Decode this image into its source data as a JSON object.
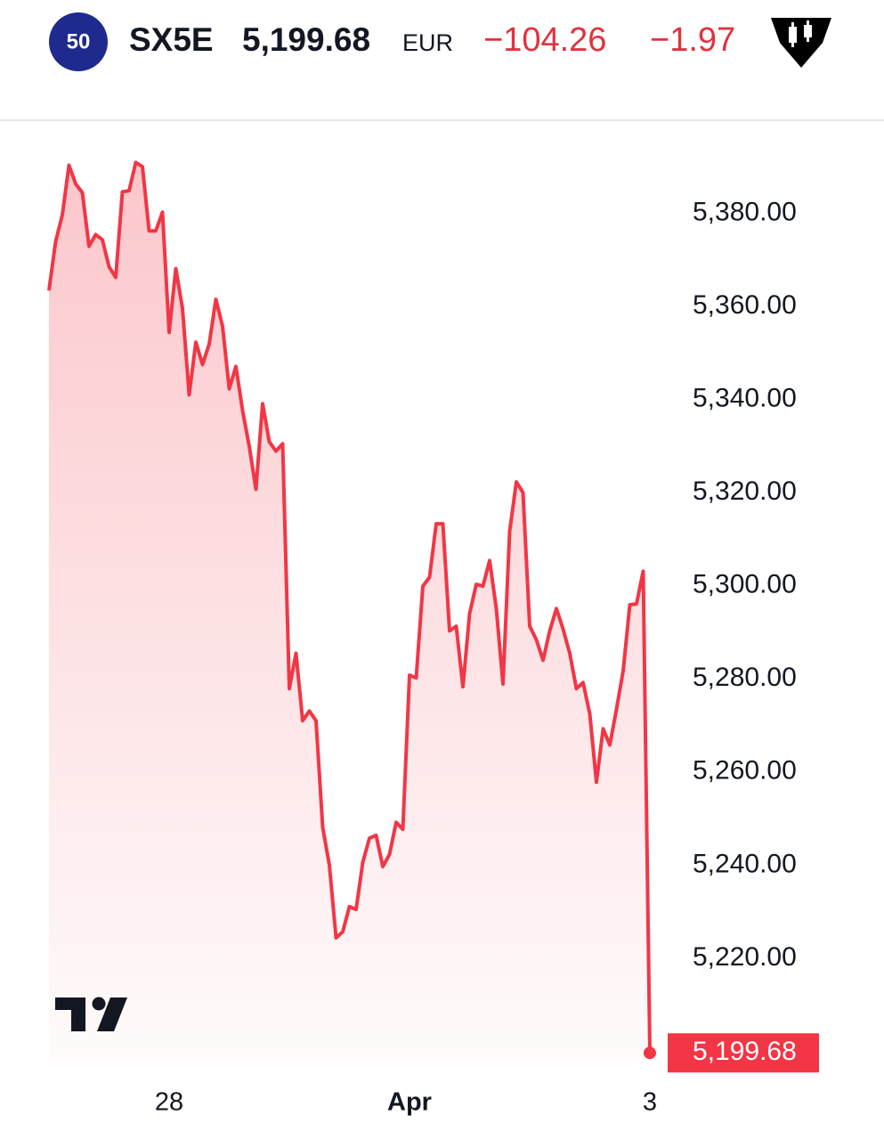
{
  "header": {
    "badge": "50",
    "symbol": "SX5E",
    "price": "5,199.68",
    "currency": "EUR",
    "change": "−104.26",
    "change_percent": "−1.97"
  },
  "chart_data": {
    "type": "area",
    "categories": [
      null,
      null,
      null,
      null,
      null,
      null,
      null,
      null,
      null,
      null,
      null,
      null,
      null,
      null,
      null,
      null,
      null,
      null,
      "28",
      null,
      null,
      null,
      null,
      null,
      null,
      null,
      null,
      null,
      null,
      null,
      null,
      null,
      null,
      null,
      null,
      null,
      null,
      null,
      null,
      null,
      null,
      null,
      null,
      null,
      null,
      null,
      null,
      null,
      null,
      null,
      null,
      null,
      null,
      null,
      "Apr",
      null,
      null,
      null,
      null,
      null,
      null,
      null,
      null,
      null,
      null,
      null,
      null,
      null,
      null,
      null,
      null,
      null,
      null,
      null,
      null,
      null,
      null,
      null,
      null,
      null,
      null,
      null,
      null,
      null,
      null,
      null,
      null,
      null,
      null,
      null,
      "3"
    ],
    "series": [
      {
        "name": "SX5E",
        "color": "#f23645",
        "values": [
          5363.4,
          5373.9,
          5379.6,
          5390.3,
          5386.3,
          5384.4,
          5372.9,
          5375.4,
          5374.3,
          5368.5,
          5366.2,
          5384.6,
          5384.8,
          5390.9,
          5390.0,
          5376.2,
          5376.2,
          5380.2,
          5354.4,
          5368.1,
          5359.5,
          5341.0,
          5352.3,
          5347.5,
          5351.9,
          5361.5,
          5355.7,
          5342.3,
          5347.1,
          5337.6,
          5329.9,
          5320.7,
          5339.1,
          5330.9,
          5328.9,
          5330.5,
          5277.9,
          5285.5,
          5271.0,
          5273.1,
          5271.0,
          5248.1,
          5240.0,
          5224.4,
          5225.7,
          5231.1,
          5230.5,
          5240.6,
          5245.8,
          5246.4,
          5239.7,
          5242.3,
          5249.2,
          5247.7,
          5280.8,
          5280.2,
          5299.9,
          5301.8,
          5313.3,
          5313.3,
          5290.3,
          5291.3,
          5278.3,
          5294.0,
          5300.3,
          5299.9,
          5305.4,
          5295.1,
          5278.9,
          5311.7,
          5322.3,
          5320.0,
          5291.3,
          5288.4,
          5284.0,
          5290.3,
          5295.1,
          5290.7,
          5285.5,
          5277.9,
          5279.2,
          5272.5,
          5257.8,
          5269.3,
          5265.8,
          5273.5,
          5281.7,
          5295.9,
          5296.1,
          5303.1,
          5199.68
        ]
      }
    ],
    "price_label": {
      "value": 5199.68,
      "label": "5,199.68"
    },
    "ylim": [
      5198,
      5399
    ],
    "yticks": [
      {
        "value": 5220,
        "label": "5,220.00"
      },
      {
        "value": 5240,
        "label": "5,240.00"
      },
      {
        "value": 5260,
        "label": "5,260.00"
      },
      {
        "value": 5280,
        "label": "5,280.00"
      },
      {
        "value": 5300,
        "label": "5,300.00"
      },
      {
        "value": 5320,
        "label": "5,320.00"
      },
      {
        "value": 5340,
        "label": "5,340.00"
      },
      {
        "value": 5360,
        "label": "5,360.00"
      },
      {
        "value": 5380,
        "label": "5,380.00"
      }
    ],
    "grid": false
  }
}
